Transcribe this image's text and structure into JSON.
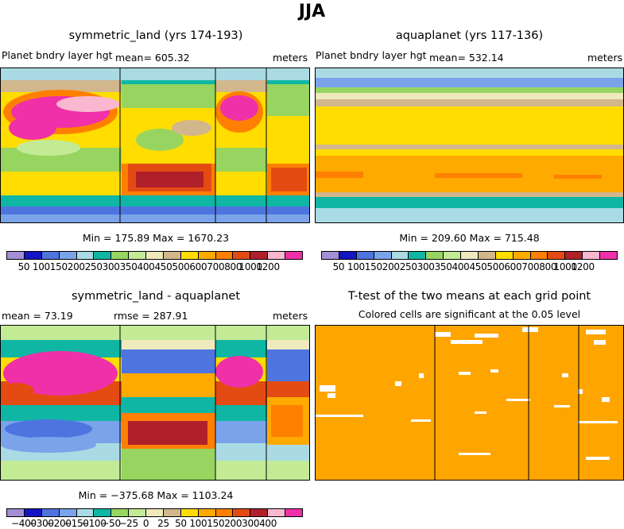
{
  "figure_title": "JJA",
  "colors": {
    "levels_abs": [
      "#a28fd6",
      "#1515c4",
      "#4e74e0",
      "#7aa3ea",
      "#aadbe4",
      "#0fb6a4",
      "#97d560",
      "#c3eb96",
      "#eeeabe",
      "#d2b68c",
      "#ffdd00",
      "#ffaa00",
      "#ff8000",
      "#e34b12",
      "#b0202a",
      "#f9b8d0",
      "#f030a8"
    ],
    "levels_diff": [
      "#a28fd6",
      "#1515c4",
      "#4e74e0",
      "#7aa3ea",
      "#aadbe4",
      "#0fb6a4",
      "#97d560",
      "#c3eb96",
      "#eeeabe",
      "#d2b68c",
      "#ffdd00",
      "#ffaa00",
      "#ff8000",
      "#e34b12",
      "#b0202a",
      "#f9b8d0",
      "#f030a8"
    ],
    "significant": "#ffa500"
  },
  "panels": {
    "p1": {
      "title": "symmetric_land (yrs 174-193)",
      "left_label": "Planet bndry layer hgt",
      "mean_label": "mean=  605.32",
      "units": "meters",
      "minmax": "Min = 175.89  Max = 1670.23"
    },
    "p2": {
      "title": "aquaplanet (yrs 117-136)",
      "left_label": "Planet bndry layer hgt",
      "mean_label": "mean=  532.14",
      "units": "meters",
      "minmax": "Min = 209.60  Max = 715.48"
    },
    "p3": {
      "title": "symmetric_land - aquaplanet",
      "left_label": "mean =  73.19",
      "mean_label": "rmse =  287.91",
      "units": "meters",
      "minmax": "Min = −375.68  Max = 1103.24"
    },
    "p4": {
      "title": "T-test of the two means at each grid point",
      "subtitle": "Colored cells are significant at the 0.05 level"
    }
  },
  "colorbar_abs_labels": [
    "50",
    "100",
    "150",
    "200",
    "250",
    "300",
    "350",
    "400",
    "450",
    "500",
    "600",
    "700",
    "800",
    "1000",
    "1200"
  ],
  "colorbar_diff_labels": [
    "−400",
    "−300",
    "−200",
    "−150",
    "−100",
    "−50",
    "−25",
    "0",
    "25",
    "50",
    "100",
    "150",
    "200",
    "300",
    "400"
  ],
  "chart_data": [
    {
      "type": "heatmap",
      "title": "symmetric_land (yrs 174-193)",
      "variable": "Planet bndry layer hgt",
      "units": "meters",
      "mean": 605.32,
      "min": 175.89,
      "max": 1670.23,
      "levels": [
        50,
        100,
        150,
        200,
        250,
        300,
        350,
        400,
        450,
        500,
        600,
        700,
        800,
        1000,
        1200
      ]
    },
    {
      "type": "heatmap",
      "title": "aquaplanet (yrs 117-136)",
      "variable": "Planet bndry layer hgt",
      "units": "meters",
      "mean": 532.14,
      "min": 209.6,
      "max": 715.48,
      "levels": [
        50,
        100,
        150,
        200,
        250,
        300,
        350,
        400,
        450,
        500,
        600,
        700,
        800,
        1000,
        1200
      ]
    },
    {
      "type": "heatmap",
      "title": "symmetric_land - aquaplanet",
      "units": "meters",
      "mean": 73.19,
      "rmse": 287.91,
      "min": -375.68,
      "max": 1103.24,
      "levels": [
        -400,
        -300,
        -200,
        -150,
        -100,
        -50,
        -25,
        0,
        25,
        50,
        100,
        150,
        200,
        300,
        400
      ]
    },
    {
      "type": "heatmap",
      "title": "T-test of the two means at each grid point",
      "note": "Colored cells are significant at the 0.05 level"
    }
  ]
}
